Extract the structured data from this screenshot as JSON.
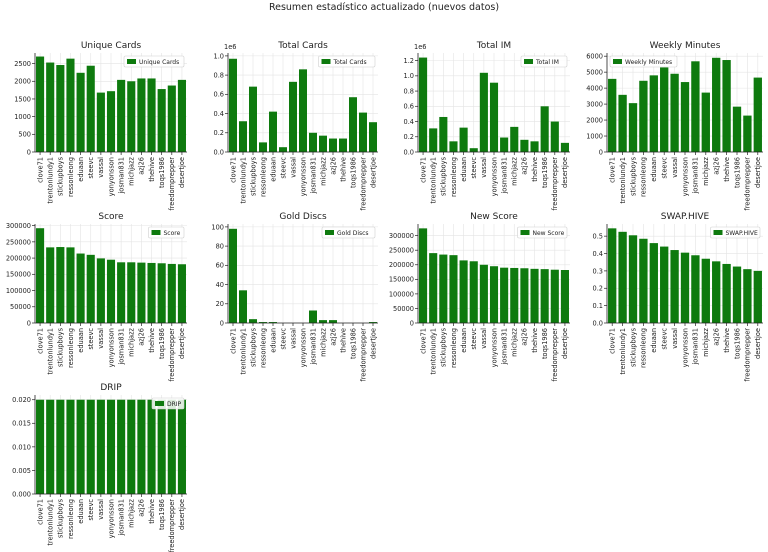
{
  "suptitle": "Resumen estadístico actualizado (nuevos datos)",
  "chart_data": [
    {
      "type": "bar",
      "title": "Unique Cards",
      "legend": "Unique Cards",
      "legend_loc": "upper right",
      "categories": [
        "clove71",
        "trentonlundy1",
        "stickupboys",
        "ressonleong",
        "eduaan",
        "steevc",
        "vassal",
        "yonyonsson",
        "josman831",
        "michjazz",
        "azj26",
        "thehive",
        "toqs1986",
        "freedomprepper",
        "desertjoe"
      ],
      "values": [
        2700,
        2530,
        2460,
        2640,
        2240,
        2440,
        1680,
        1720,
        2040,
        2000,
        2080,
        2080,
        1780,
        1880,
        2040
      ],
      "ylim": [
        0,
        2800
      ],
      "yticks": [
        0,
        500,
        1000,
        1500,
        2000,
        2500
      ],
      "yticklabels": [
        "0",
        "500",
        "1000",
        "1500",
        "2000",
        "2500"
      ],
      "offset": ""
    },
    {
      "type": "bar",
      "title": "Total Cards",
      "legend": "Total Cards",
      "legend_loc": "upper right",
      "categories": [
        "clove71",
        "trentonlundy1",
        "stickupboys",
        "ressonleong",
        "eduaan",
        "steevc",
        "vassal",
        "yonyonsson",
        "josman831",
        "michjazz",
        "azj26",
        "thehive",
        "toqs1986",
        "freedomprepper",
        "desertjoe"
      ],
      "values": [
        0.97,
        0.32,
        0.68,
        0.1,
        0.42,
        0.05,
        0.73,
        0.86,
        0.2,
        0.17,
        0.14,
        0.14,
        0.57,
        0.41,
        0.31
      ],
      "ylim": [
        0,
        1.03
      ],
      "yticks": [
        0,
        0.2,
        0.4,
        0.6,
        0.8,
        1.0
      ],
      "yticklabels": [
        "0.0",
        "0.2",
        "0.4",
        "0.6",
        "0.8",
        "1.0"
      ],
      "offset": "1e6"
    },
    {
      "type": "bar",
      "title": "Total IM",
      "legend": "Total IM",
      "legend_loc": "upper right",
      "categories": [
        "clove71",
        "trentonlundy1",
        "stickupboys",
        "ressonleong",
        "eduaan",
        "steevc",
        "vassal",
        "yonyonsson",
        "josman831",
        "michjazz",
        "azj26",
        "thehive",
        "toqs1986",
        "freedomprepper",
        "desertjoe"
      ],
      "values": [
        1.24,
        0.31,
        0.46,
        0.14,
        0.32,
        0.05,
        1.04,
        0.91,
        0.19,
        0.33,
        0.16,
        0.14,
        0.6,
        0.4,
        0.12
      ],
      "ylim": [
        0,
        1.3
      ],
      "yticks": [
        0,
        0.2,
        0.4,
        0.6,
        0.8,
        1.0,
        1.2
      ],
      "yticklabels": [
        "0.0",
        "0.2",
        "0.4",
        "0.6",
        "0.8",
        "1.0",
        "1.2"
      ],
      "offset": "1e6"
    },
    {
      "type": "bar",
      "title": "Weekly Minutes",
      "legend": "Weekly Minutes",
      "legend_loc": "upper left",
      "categories": [
        "clove71",
        "trentonlundy1",
        "stickupboys",
        "ressonleong",
        "eduaan",
        "steevc",
        "vassal",
        "yonyonsson",
        "josman831",
        "michjazz",
        "azj26",
        "thehive",
        "toqs1986",
        "freedomprepper",
        "desertjoe"
      ],
      "values": [
        4580,
        3580,
        3060,
        4460,
        4800,
        5300,
        4900,
        4380,
        5680,
        3720,
        5900,
        5760,
        2840,
        2280,
        4660
      ],
      "ylim": [
        0,
        6200
      ],
      "yticks": [
        0,
        1000,
        2000,
        3000,
        4000,
        5000,
        6000
      ],
      "yticklabels": [
        "0",
        "1000",
        "2000",
        "3000",
        "4000",
        "5000",
        "6000"
      ],
      "offset": ""
    },
    {
      "type": "bar",
      "title": "Score",
      "legend": "Score",
      "legend_loc": "upper right",
      "categories": [
        "clove71",
        "trentonlundy1",
        "stickupboys",
        "ressonleong",
        "eduaan",
        "steevc",
        "vassal",
        "yonyonsson",
        "josman831",
        "michjazz",
        "azj26",
        "thehive",
        "toqs1986",
        "freedomprepper",
        "desertjoe"
      ],
      "values": [
        292000,
        233000,
        234000,
        233000,
        214000,
        210000,
        199000,
        195000,
        187000,
        187000,
        186000,
        185000,
        184000,
        182000,
        181000
      ],
      "ylim": [
        0,
        305000
      ],
      "yticks": [
        0,
        50000,
        100000,
        150000,
        200000,
        250000,
        300000
      ],
      "yticklabels": [
        "0",
        "50000",
        "100000",
        "150000",
        "200000",
        "250000",
        "300000"
      ],
      "offset": ""
    },
    {
      "type": "bar",
      "title": "Gold Discs",
      "legend": "Gold Discs",
      "legend_loc": "upper right",
      "categories": [
        "clove71",
        "trentonlundy1",
        "stickupboys",
        "ressonleong",
        "eduaan",
        "steevc",
        "vassal",
        "yonyonsson",
        "josman831",
        "michjazz",
        "azj26",
        "thehive",
        "toqs1986",
        "freedomprepper",
        "desertjoe"
      ],
      "values": [
        98,
        34,
        4,
        1,
        1,
        0,
        0,
        0,
        13,
        3,
        3,
        0,
        0,
        0,
        1
      ],
      "ylim": [
        0,
        103
      ],
      "yticks": [
        0,
        20,
        40,
        60,
        80,
        100
      ],
      "yticklabels": [
        "0",
        "20",
        "40",
        "60",
        "80",
        "100"
      ],
      "offset": ""
    },
    {
      "type": "bar",
      "title": "New Score",
      "legend": "New Score",
      "legend_loc": "upper right",
      "categories": [
        "clove71",
        "trentonlundy1",
        "stickupboys",
        "ressonleong",
        "eduaan",
        "steevc",
        "vassal",
        "yonyonsson",
        "josman831",
        "michjazz",
        "azj26",
        "thehive",
        "toqs1986",
        "freedomprepper",
        "desertjoe"
      ],
      "values": [
        325000,
        240000,
        235000,
        233000,
        215000,
        212000,
        200000,
        195000,
        190000,
        189000,
        188000,
        186000,
        185000,
        183000,
        182000
      ],
      "ylim": [
        0,
        340000
      ],
      "yticks": [
        0,
        50000,
        100000,
        150000,
        200000,
        250000,
        300000
      ],
      "yticklabels": [
        "0",
        "50000",
        "100000",
        "150000",
        "200000",
        "250000",
        "300000"
      ],
      "offset": ""
    },
    {
      "type": "bar",
      "title": "SWAP.HIVE",
      "legend": "SWAP.HIVE",
      "legend_loc": "upper right",
      "categories": [
        "clove71",
        "trentonlundy1",
        "stickupboys",
        "ressonleong",
        "eduaan",
        "steevc",
        "vassal",
        "yonyonsson",
        "josman831",
        "michjazz",
        "azj26",
        "thehive",
        "toqs1986",
        "freedomprepper",
        "desertjoe"
      ],
      "values": [
        0.545,
        0.525,
        0.505,
        0.485,
        0.46,
        0.44,
        0.42,
        0.405,
        0.39,
        0.37,
        0.355,
        0.34,
        0.325,
        0.31,
        0.3
      ],
      "ylim": [
        0,
        0.57
      ],
      "yticks": [
        0,
        0.1,
        0.2,
        0.3,
        0.4,
        0.5
      ],
      "yticklabels": [
        "0.0",
        "0.1",
        "0.2",
        "0.3",
        "0.4",
        "0.5"
      ],
      "offset": ""
    },
    {
      "type": "bar",
      "title": "DRIP",
      "legend": "DRIP",
      "legend_loc": "upper right",
      "categories": [
        "clove71",
        "trentonlundy1",
        "stickupboys",
        "ressonleong",
        "eduaan",
        "steevc",
        "vassal",
        "yonyonsson",
        "josman831",
        "michjazz",
        "azj26",
        "thehive",
        "toqs1986",
        "freedomprepper",
        "desertjoe"
      ],
      "values": [
        0.02,
        0.02,
        0.02,
        0.02,
        0.02,
        0.02,
        0.02,
        0.02,
        0.02,
        0.02,
        0.02,
        0.02,
        0.02,
        0.02,
        0.02
      ],
      "ylim": [
        0,
        0.021
      ],
      "yticks": [
        0,
        0.005,
        0.01,
        0.015,
        0.02
      ],
      "yticklabels": [
        "0.000",
        "0.005",
        "0.010",
        "0.015",
        "0.020"
      ],
      "offset": ""
    }
  ],
  "colors": {
    "bar": "#0e7a0e",
    "grid": "#e4e4e4",
    "axis": "#222222"
  }
}
